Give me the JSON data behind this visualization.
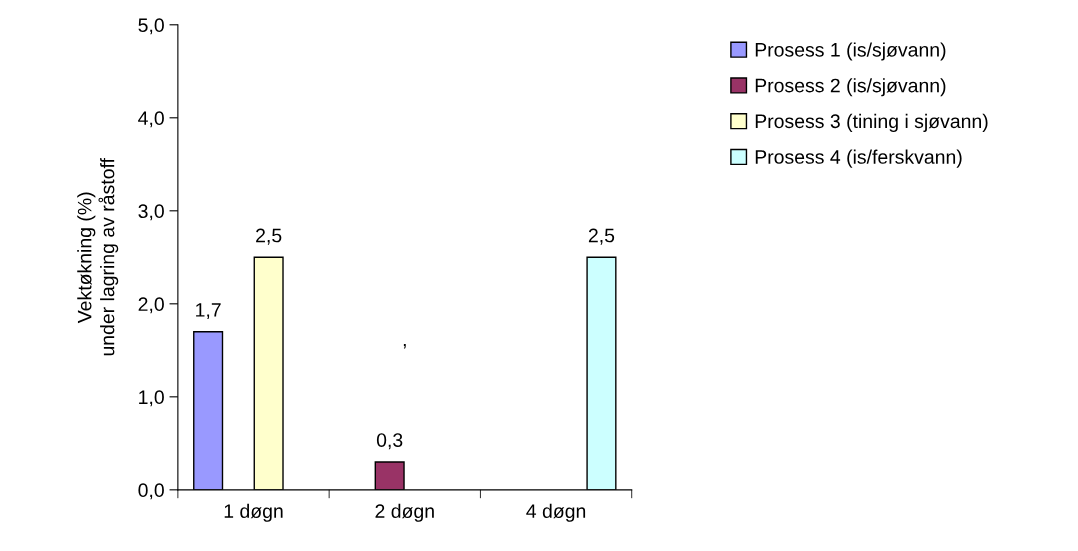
{
  "chart_data": {
    "type": "bar",
    "ylabel": "Vektøkning (%)\nunder lagring av råstoff",
    "categories": [
      "1 døgn",
      "2 døgn",
      "4 døgn"
    ],
    "series": [
      {
        "name": "Prosess 1 (is/sjøvann)",
        "color": "#9999ff",
        "values": [
          1.7,
          null,
          null
        ],
        "value_labels": [
          "1,7",
          null,
          null
        ]
      },
      {
        "name": "Prosess 2 (is/sjøvann)",
        "color": "#993366",
        "values": [
          null,
          0.3,
          null
        ],
        "value_labels": [
          null,
          "0,3",
          null
        ]
      },
      {
        "name": "Prosess 3 (tining i sjøvann)",
        "color": "#ffffcc",
        "values": [
          2.5,
          null,
          null
        ],
        "value_labels": [
          "2,5",
          null,
          null
        ]
      },
      {
        "name": "Prosess 4 (is/ferskvann)",
        "color": "#ccffff",
        "values": [
          null,
          null,
          2.5
        ],
        "value_labels": [
          null,
          null,
          "2,5"
        ]
      }
    ],
    "ylim": [
      0,
      5
    ],
    "yticks": [
      {
        "value": 0,
        "label": "0,0"
      },
      {
        "value": 1,
        "label": "1,0"
      },
      {
        "value": 2,
        "label": "2,0"
      },
      {
        "value": 3,
        "label": "3,0"
      },
      {
        "value": 4,
        "label": "4,0"
      },
      {
        "value": 5,
        "label": "5,0"
      }
    ],
    "annotations": [
      ","
    ],
    "grid": false,
    "legend": "top right"
  }
}
